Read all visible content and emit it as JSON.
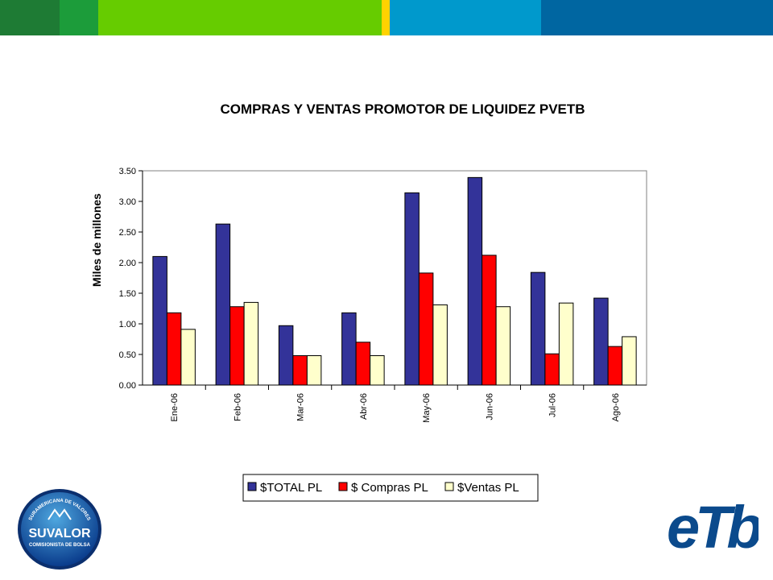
{
  "colors": {
    "band": [
      "#1e7b34",
      "#1c9c3a",
      "#66cc00",
      "#ffd200",
      "#0099cc",
      "#0066a1"
    ],
    "series": [
      "#333399",
      "#ff0000",
      "#ffffcc"
    ]
  },
  "logos": {
    "suvalor": {
      "icon": "suvalor-logo",
      "arc_top": "SURAMERICANA DE VALORES",
      "name": "SUVALOR",
      "arc_bottom": "COMISIONISTA DE BOLSA"
    },
    "etb": {
      "icon": "etb-logo",
      "text": "eTb"
    }
  },
  "chart_data": {
    "type": "bar",
    "title": "COMPRAS Y VENTAS PROMOTOR DE LIQUIDEZ PVETB",
    "ylabel": "Miles de millones",
    "xlabel": "",
    "ylim": [
      0,
      3.5
    ],
    "yticks": [
      "0.00",
      "0.50",
      "1.00",
      "1.50",
      "2.00",
      "2.50",
      "3.00",
      "3.50"
    ],
    "categories": [
      "Ene-06",
      "Feb-06",
      "Mar-06",
      "Abr-06",
      "May-06",
      "Jun-06",
      "Jul-06",
      "Ago-06"
    ],
    "series": [
      {
        "name": "$TOTAL PL",
        "values": [
          2.1,
          2.63,
          0.97,
          1.18,
          3.14,
          3.39,
          1.84,
          1.42
        ]
      },
      {
        "name": "$ Compras PL",
        "values": [
          1.18,
          1.28,
          0.48,
          0.7,
          1.83,
          2.12,
          0.51,
          0.63
        ]
      },
      {
        "name": "$Ventas PL",
        "values": [
          0.91,
          1.35,
          0.48,
          0.48,
          1.31,
          1.28,
          1.34,
          0.79
        ]
      }
    ],
    "grid": false,
    "legend": "bottom"
  }
}
